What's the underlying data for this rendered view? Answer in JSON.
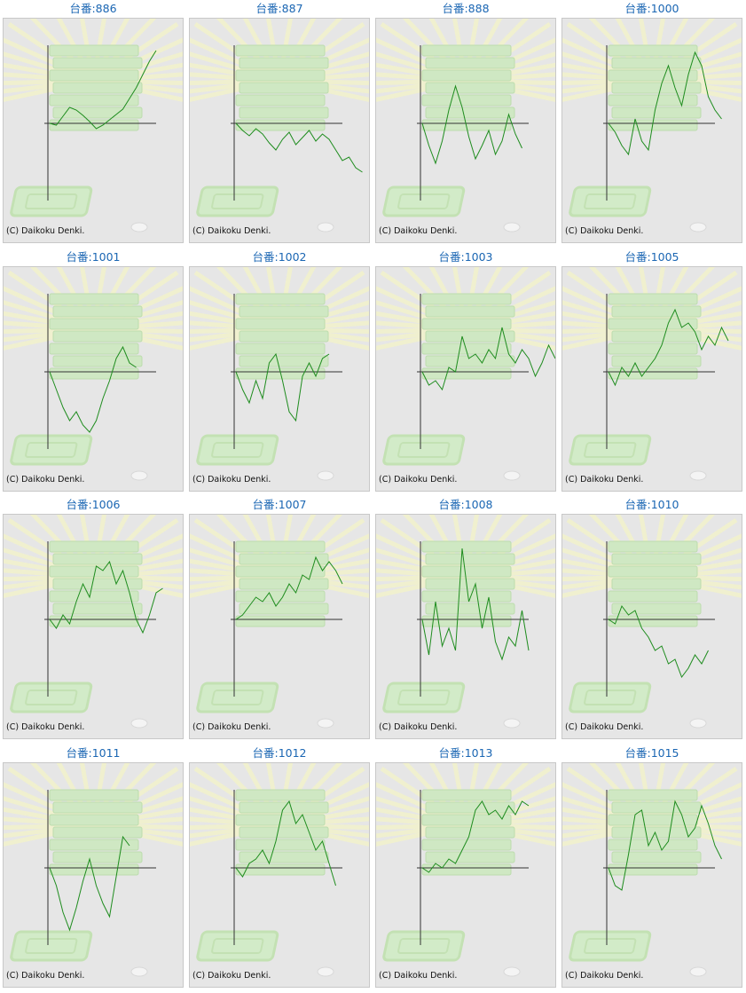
{
  "colors": {
    "title": "#1a66b3",
    "line": "#1e8c1e",
    "axis": "#333333",
    "panel_bg": "#e6e6e6"
  },
  "copyright": "(C) Daikoku Denki.",
  "machines": [
    {
      "label": "台番:886",
      "values": [
        0,
        -2,
        8,
        18,
        15,
        9,
        2,
        -6,
        -2,
        4,
        10,
        16,
        28,
        40,
        55,
        70,
        82
      ]
    },
    {
      "label": "台番:887",
      "values": [
        0,
        -8,
        -14,
        -6,
        -12,
        -22,
        -30,
        -18,
        -10,
        -24,
        -16,
        -8,
        -20,
        -12,
        -18,
        -30,
        -42,
        -38,
        -50,
        -55
      ]
    },
    {
      "label": "台番:888",
      "values": [
        0,
        -25,
        -45,
        -20,
        15,
        42,
        18,
        -15,
        -40,
        -25,
        -8,
        -35,
        -20,
        10,
        -12,
        -28
      ]
    },
    {
      "label": "台番:1000",
      "values": [
        0,
        -10,
        -25,
        -35,
        5,
        -20,
        -30,
        15,
        45,
        65,
        40,
        20,
        55,
        80,
        65,
        30,
        15,
        5
      ]
    },
    {
      "label": "台番:1001",
      "values": [
        0,
        -20,
        -40,
        -55,
        -45,
        -60,
        -68,
        -55,
        -30,
        -10,
        15,
        28,
        10,
        5
      ]
    },
    {
      "label": "台番:1002",
      "values": [
        0,
        -20,
        -35,
        -10,
        -30,
        10,
        20,
        -10,
        -45,
        -55,
        -5,
        10,
        -5,
        15,
        20
      ]
    },
    {
      "label": "台番:1003",
      "values": [
        0,
        -15,
        -10,
        -20,
        5,
        0,
        40,
        15,
        20,
        10,
        25,
        15,
        50,
        20,
        10,
        25,
        15,
        -5,
        10,
        30,
        15
      ]
    },
    {
      "label": "台番:1005",
      "values": [
        0,
        -15,
        5,
        -5,
        10,
        -5,
        5,
        15,
        30,
        55,
        70,
        50,
        55,
        45,
        25,
        40,
        30,
        50,
        35
      ]
    },
    {
      "label": "台番:1006",
      "values": [
        0,
        -10,
        5,
        -5,
        20,
        40,
        25,
        60,
        55,
        65,
        40,
        55,
        30,
        0,
        -15,
        5,
        30,
        35
      ]
    },
    {
      "label": "台番:1007",
      "values": [
        0,
        5,
        15,
        25,
        20,
        30,
        15,
        25,
        40,
        30,
        50,
        45,
        70,
        55,
        65,
        55,
        40
      ]
    },
    {
      "label": "台番:1008",
      "values": [
        0,
        -40,
        20,
        -30,
        -10,
        -35,
        80,
        20,
        40,
        -10,
        25,
        -25,
        -45,
        -20,
        -30,
        10,
        -35
      ]
    },
    {
      "label": "台番:1010",
      "values": [
        0,
        -5,
        15,
        5,
        10,
        -10,
        -20,
        -35,
        -30,
        -50,
        -45,
        -65,
        -55,
        -40,
        -50,
        -35
      ]
    },
    {
      "label": "台番:1011",
      "values": [
        0,
        -20,
        -50,
        -70,
        -45,
        -15,
        10,
        -20,
        -40,
        -55,
        -10,
        35,
        25
      ]
    },
    {
      "label": "台番:1012",
      "values": [
        0,
        -10,
        5,
        10,
        20,
        5,
        30,
        65,
        75,
        50,
        60,
        40,
        20,
        30,
        5,
        -20
      ]
    },
    {
      "label": "台番:1013",
      "values": [
        0,
        -5,
        5,
        0,
        10,
        5,
        20,
        35,
        65,
        75,
        60,
        65,
        55,
        70,
        60,
        75,
        70
      ]
    },
    {
      "label": "台番:1015",
      "values": [
        0,
        -20,
        -25,
        15,
        60,
        65,
        25,
        40,
        20,
        30,
        75,
        60,
        35,
        45,
        70,
        50,
        25,
        10
      ]
    }
  ]
}
